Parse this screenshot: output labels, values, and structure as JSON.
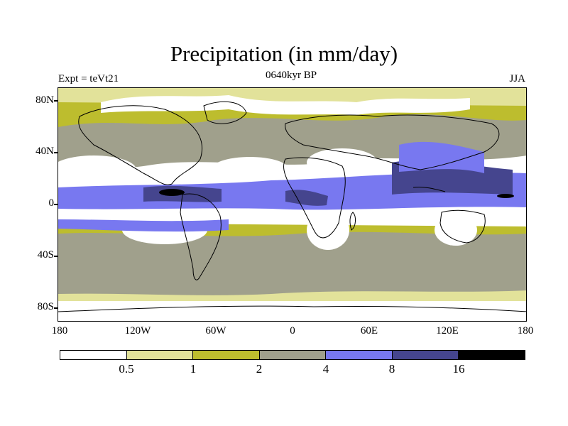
{
  "title": "Precipitation (in mm/day)",
  "experiment_label": "Expt = teVt21",
  "time_label": "0640kyr BP",
  "season_label": "JJA",
  "lat_labels": [
    "80N",
    "40N",
    "0",
    "40S",
    "80S"
  ],
  "lon_labels": [
    "180",
    "120W",
    "60W",
    "0",
    "60E",
    "120E",
    "180"
  ],
  "colorbar": {
    "levels": [
      "0.5",
      "1",
      "2",
      "4",
      "8",
      "16"
    ],
    "colors": [
      "#ffffff",
      "#e2e29a",
      "#bdbd2e",
      "#a0a08c",
      "#7878f0",
      "#45458e",
      "#000000"
    ]
  },
  "colors": {
    "land_outline": "#000000",
    "frame": "#000000"
  }
}
